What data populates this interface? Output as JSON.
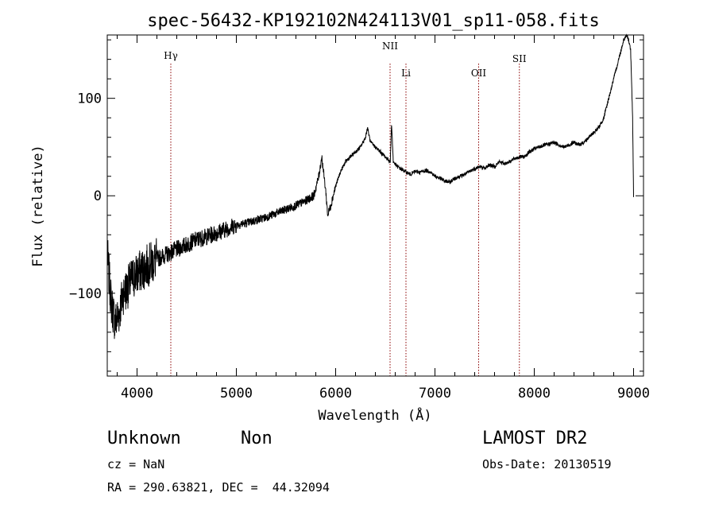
{
  "chart_data": {
    "type": "line",
    "title": "spec-56432-KP192102N424113V01_sp11-058.fits",
    "xlabel": "Wavelength (Å)",
    "ylabel": "Flux (relative)",
    "xlim": [
      3700,
      9100
    ],
    "ylim": [
      -185,
      165
    ],
    "x_ticks": [
      4000,
      5000,
      6000,
      7000,
      8000,
      9000
    ],
    "y_ticks": [
      -100,
      0,
      100
    ],
    "x_tick_labels": [
      "4000",
      "5000",
      "6000",
      "7000",
      "8000",
      "9000"
    ],
    "y_tick_labels": [
      "−100",
      "0",
      "100"
    ],
    "grid": false,
    "series": [
      {
        "x": [
          3700,
          3740,
          3780,
          3820,
          3860,
          3900,
          3950,
          4000,
          4100,
          4200,
          4300,
          4400,
          4500,
          4600,
          4700,
          4800,
          4900,
          5000,
          5100,
          5200,
          5300,
          5400,
          5500,
          5600,
          5700,
          5780,
          5830,
          5860,
          5900,
          5920,
          5950,
          6000,
          6050,
          6100,
          6150,
          6200,
          6250,
          6300,
          6320,
          6350,
          6400,
          6450,
          6500,
          6550,
          6563,
          6580,
          6620,
          6650,
          6700,
          6750,
          6800,
          6850,
          6900,
          6950,
          7000,
          7050,
          7100,
          7150,
          7200,
          7250,
          7300,
          7350,
          7400,
          7450,
          7500,
          7550,
          7600,
          7650,
          7700,
          7750,
          7800,
          7850,
          7900,
          7950,
          8000,
          8050,
          8100,
          8150,
          8200,
          8250,
          8300,
          8350,
          8400,
          8450,
          8500,
          8550,
          8600,
          8650,
          8700,
          8750,
          8800,
          8850,
          8900,
          8930,
          8950,
          8970,
          8990,
          9000
        ],
        "y": [
          -60,
          -110,
          -130,
          -120,
          -100,
          -95,
          -85,
          -80,
          -72,
          -65,
          -60,
          -55,
          -50,
          -45,
          -42,
          -38,
          -34,
          -30,
          -28,
          -25,
          -22,
          -18,
          -14,
          -10,
          -5,
          0,
          20,
          40,
          5,
          -20,
          -10,
          10,
          25,
          35,
          40,
          45,
          50,
          60,
          70,
          55,
          50,
          45,
          40,
          35,
          75,
          35,
          30,
          28,
          25,
          22,
          25,
          24,
          26,
          25,
          20,
          18,
          15,
          14,
          18,
          20,
          22,
          25,
          28,
          30,
          28,
          32,
          30,
          35,
          33,
          35,
          38,
          40,
          40,
          45,
          48,
          50,
          52,
          53,
          55,
          52,
          50,
          52,
          55,
          52,
          55,
          60,
          65,
          70,
          80,
          100,
          120,
          140,
          160,
          165,
          160,
          150,
          80,
          0
        ]
      }
    ],
    "emission_lines": [
      {
        "label": "Hγ",
        "wavelength": 4340
      },
      {
        "label": "NII",
        "wavelength": 6548
      },
      {
        "label": "Li",
        "wavelength": 6708
      },
      {
        "label": "OII",
        "wavelength": 7440
      },
      {
        "label": "SII",
        "wavelength": 7850
      }
    ]
  },
  "info": {
    "class": "Unknown",
    "subclass": "Non",
    "cz": "cz = NaN",
    "radec": "RA = 290.63821, DEC =  44.32094",
    "survey": "LAMOST DR2",
    "obsdate": "Obs-Date: 20130519"
  }
}
